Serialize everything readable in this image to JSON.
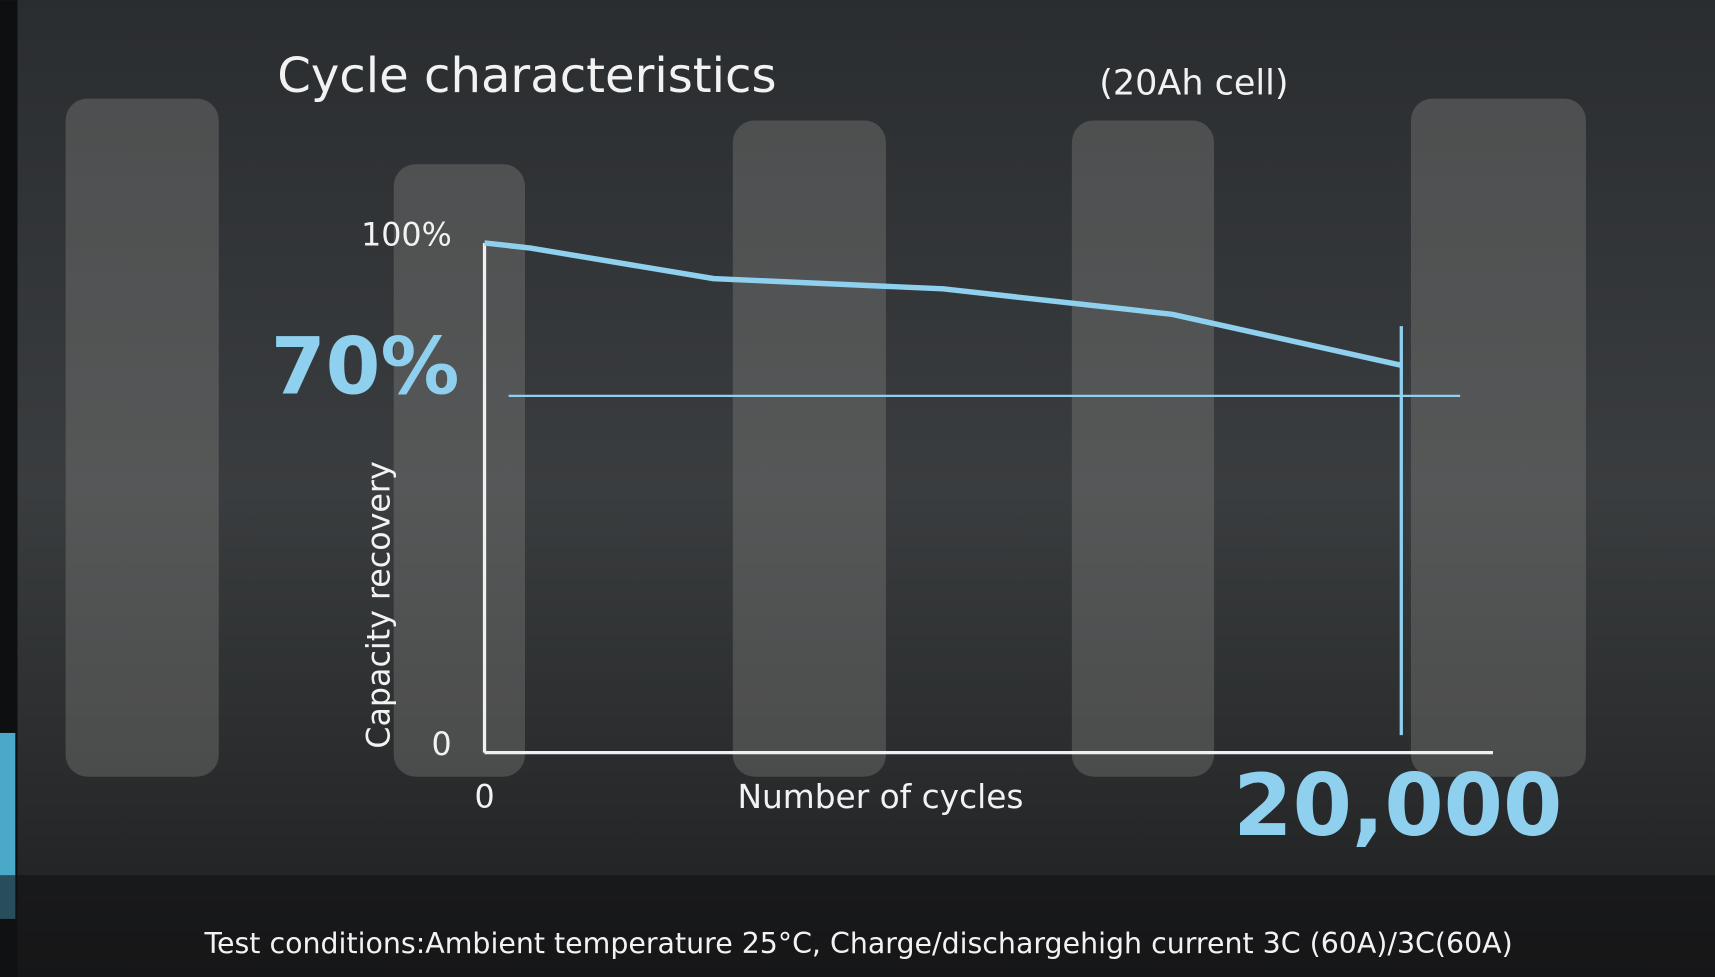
{
  "chart_data": {
    "type": "line",
    "title": "Cycle characteristics",
    "subtitle": "(20Ah cell)",
    "y_label": "Capacity recovery",
    "x_label": "Number of cycles",
    "x": [
      0,
      1000,
      5000,
      10000,
      15000,
      20000
    ],
    "series": [
      {
        "name": "Capacity recovery",
        "color": "#8fd0ef",
        "values": [
          100,
          99,
          93,
          91,
          86,
          76
        ]
      }
    ],
    "xlim": [
      0,
      22000
    ],
    "ylim": [
      0,
      100
    ],
    "xticks": [
      0
    ],
    "yticks": [
      0,
      {
        "value": 100,
        "label": "100%"
      }
    ],
    "highlight_y": {
      "value": 70,
      "label": "70%"
    },
    "highlight_x": {
      "value": 20000,
      "label": "20,000"
    },
    "highlight_color": "#8fd0ef",
    "footnote": "Test conditions:Ambient temperature  25°C, Charge/dischargehigh current 3C (60A)/3C(60A)"
  }
}
